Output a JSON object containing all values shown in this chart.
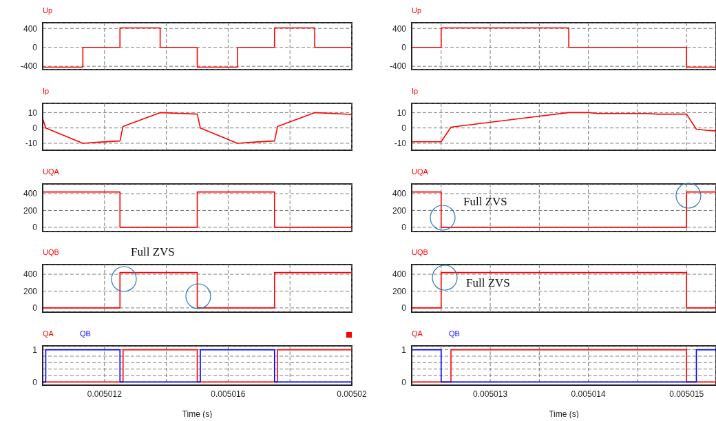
{
  "chart_data": [
    {
      "type": "step",
      "series": [
        {
          "name": "Up",
          "color": "#ff0000",
          "x": [
            0.00501,
            0.0050113,
            0.0050125,
            0.0050138,
            0.005015,
            0.0050163,
            0.0050175,
            0.0050188,
            0.00502
          ],
          "values": [
            -420,
            0,
            410,
            0,
            -420,
            0,
            410,
            0,
            0
          ]
        }
      ],
      "xlim": [
        0.00501,
        0.00502
      ],
      "xticks": [
        0.005012,
        {
          "value": 0.005014,
          "label": null
        },
        0.005016,
        {
          "value": 0.005018,
          "label": null
        },
        0.00502
      ],
      "ylim": [
        -470,
        520
      ],
      "yticks": [
        -400,
        0,
        400
      ],
      "grid": true,
      "tick_labels": "y",
      "legend": "top left"
    },
    {
      "type": "step",
      "series": [
        {
          "name": "Up",
          "color": "#ff0000",
          "x": [
            0.0050122,
            0.0050125,
            0.0050138,
            0.005015,
            0.0050153
          ],
          "values": [
            0,
            410,
            0,
            -420,
            -420
          ]
        }
      ],
      "xlim": [
        0.0050122,
        0.0050153
      ],
      "xticks": [
        {
          "value": 0.0050125,
          "label": null
        },
        0.005013,
        {
          "value": 0.0050135,
          "label": null
        },
        0.005014,
        {
          "value": 0.0050145,
          "label": null
        },
        0.005015
      ],
      "ylim": [
        -470,
        520
      ],
      "yticks": [
        -400,
        0,
        400
      ],
      "grid": true,
      "tick_labels": "y",
      "legend": "top left"
    },
    {
      "type": "line",
      "series": [
        {
          "name": "Ip",
          "color": "#ff0000",
          "x": [
            0.00501,
            0.0050101,
            0.0050113,
            0.0050118,
            0.0050125,
            0.0050126,
            0.0050138,
            0.005015,
            0.0050151,
            0.0050163,
            0.0050168,
            0.0050175,
            0.0050176,
            0.0050188,
            0.00502
          ],
          "values": [
            6,
            0,
            -10,
            -9.3,
            -8.5,
            1,
            10,
            9,
            0,
            -10,
            -9.3,
            -8.5,
            1,
            10,
            8.8
          ]
        }
      ],
      "xlim": [
        0.00501,
        0.00502
      ],
      "xticks": [
        0.005012,
        {
          "value": 0.005014,
          "label": null
        },
        0.005016,
        {
          "value": 0.005018,
          "label": null
        },
        0.00502
      ],
      "ylim": [
        -14.5,
        16
      ],
      "yticks": [
        -10,
        0,
        10
      ],
      "grid": true,
      "tick_labels": "y",
      "legend": "top left"
    },
    {
      "type": "line",
      "series": [
        {
          "name": "Ip",
          "color": "#ff0000",
          "x": [
            0.0050122,
            0.0050125,
            0.0050126,
            0.0050138,
            0.005014,
            0.0050141,
            0.0050146,
            0.0050147,
            0.005015,
            0.0050151,
            0.0050152,
            0.0050153
          ],
          "values": [
            -9,
            -9,
            0.5,
            10,
            10,
            9.4,
            9.4,
            9,
            9,
            -0.8,
            -1.5,
            -2
          ]
        }
      ],
      "xlim": [
        0.0050122,
        0.0050153
      ],
      "xticks": [
        {
          "value": 0.0050125,
          "label": null
        },
        0.005013,
        {
          "value": 0.0050135,
          "label": null
        },
        0.005014,
        {
          "value": 0.0050145,
          "label": null
        },
        0.005015
      ],
      "ylim": [
        -14.5,
        16
      ],
      "yticks": [
        -10,
        0,
        10
      ],
      "grid": true,
      "tick_labels": "y",
      "legend": "top left"
    },
    {
      "type": "step",
      "series": [
        {
          "name": "UQA",
          "color": "#ff0000",
          "x": [
            0.00501,
            0.0050125,
            0.005015,
            0.0050175,
            0.00502
          ],
          "values": [
            420,
            0,
            420,
            0,
            0
          ]
        }
      ],
      "xlim": [
        0.00501,
        0.00502
      ],
      "xticks": [
        0.005012,
        {
          "value": 0.005014,
          "label": null
        },
        0.005016,
        {
          "value": 0.005018,
          "label": null
        },
        0.00502
      ],
      "ylim": [
        -50,
        515
      ],
      "yticks": [
        0,
        200,
        400
      ],
      "grid": true,
      "tick_labels": "y",
      "legend": "top left"
    },
    {
      "type": "step",
      "series": [
        {
          "name": "UQA",
          "color": "#ff0000",
          "x": [
            0.0050122,
            0.0050125,
            0.005015,
            0.0050153
          ],
          "values": [
            420,
            0,
            420,
            420
          ]
        }
      ],
      "xlim": [
        0.0050122,
        0.0050153
      ],
      "xticks": [
        {
          "value": 0.0050125,
          "label": null
        },
        0.005013,
        {
          "value": 0.0050135,
          "label": null
        },
        0.005014,
        {
          "value": 0.0050145,
          "label": null
        },
        0.005015
      ],
      "ylim": [
        -50,
        515
      ],
      "yticks": [
        0,
        200,
        400
      ],
      "grid": true,
      "tick_labels": "y",
      "legend": "top left",
      "annotations": [
        "Full ZVS"
      ]
    },
    {
      "type": "step",
      "series": [
        {
          "name": "UQB",
          "color": "#ff0000",
          "x": [
            0.00501,
            0.0050125,
            0.005015,
            0.0050175,
            0.00502
          ],
          "values": [
            0,
            420,
            0,
            420,
            420
          ]
        }
      ],
      "xlim": [
        0.00501,
        0.00502
      ],
      "xticks": [
        0.005012,
        {
          "value": 0.005014,
          "label": null
        },
        0.005016,
        {
          "value": 0.005018,
          "label": null
        },
        0.00502
      ],
      "ylim": [
        -50,
        515
      ],
      "yticks": [
        0,
        200,
        400
      ],
      "grid": true,
      "tick_labels": "y",
      "legend": "top left",
      "annotations": [
        "Full ZVS"
      ]
    },
    {
      "type": "step",
      "series": [
        {
          "name": "UQB",
          "color": "#ff0000",
          "x": [
            0.0050122,
            0.0050125,
            0.005015,
            0.0050153
          ],
          "values": [
            0,
            420,
            0,
            0
          ]
        }
      ],
      "xlim": [
        0.0050122,
        0.0050153
      ],
      "xticks": [
        {
          "value": 0.0050125,
          "label": null
        },
        0.005013,
        {
          "value": 0.0050135,
          "label": null
        },
        0.005014,
        {
          "value": 0.0050145,
          "label": null
        },
        0.005015
      ],
      "ylim": [
        -50,
        515
      ],
      "yticks": [
        0,
        200,
        400
      ],
      "grid": true,
      "tick_labels": "y",
      "legend": "top left",
      "annotations": [
        "Full ZVS"
      ]
    },
    {
      "type": "step",
      "series": [
        {
          "name": "QA",
          "color": "#ff0000",
          "x": [
            0.00501,
            0.0050126,
            0.005015,
            0.0050176,
            0.00502
          ],
          "values": [
            0,
            1,
            0,
            1,
            1
          ]
        },
        {
          "name": "QB",
          "color": "#0000ff",
          "x": [
            0.00501,
            0.0050101,
            0.0050125,
            0.0050151,
            0.0050175,
            0.00502
          ],
          "values": [
            0,
            1,
            0,
            1,
            0,
            0
          ]
        }
      ],
      "xlim": [
        0.00501,
        0.00502
      ],
      "xticks": [
        0.005012,
        {
          "value": 0.005014,
          "label": null
        },
        0.005016,
        {
          "value": 0.005018,
          "label": null
        },
        0.00502
      ],
      "ylim": [
        -0.1,
        1.12
      ],
      "yticks": [
        0,
        {
          "value": 0.2,
          "label": null
        },
        {
          "value": 0.4,
          "label": null
        },
        {
          "value": 0.6,
          "label": null
        },
        {
          "value": 0.8,
          "label": null
        },
        1
      ],
      "grid": true,
      "xlabel": "Time (s)",
      "legend": "top left"
    },
    {
      "type": "step",
      "series": [
        {
          "name": "QA",
          "color": "#ff0000",
          "x": [
            0.0050122,
            0.0050126,
            0.005015,
            0.0050153
          ],
          "values": [
            0,
            1,
            0,
            0
          ]
        },
        {
          "name": "QB",
          "color": "#0000ff",
          "x": [
            0.0050122,
            0.0050125,
            0.0050151,
            0.0050153
          ],
          "values": [
            1,
            0,
            1,
            1
          ]
        }
      ],
      "xlim": [
        0.0050122,
        0.0050153
      ],
      "xticks": [
        {
          "value": 0.0050125,
          "label": null
        },
        0.005013,
        {
          "value": 0.0050135,
          "label": null
        },
        0.005014,
        {
          "value": 0.0050145,
          "label": null
        },
        0.005015
      ],
      "ylim": [
        -0.1,
        1.12
      ],
      "yticks": [
        0,
        {
          "value": 0.2,
          "label": null
        },
        {
          "value": 0.4,
          "label": null
        },
        {
          "value": 0.6,
          "label": null
        },
        {
          "value": 0.8,
          "label": null
        },
        1
      ],
      "grid": true,
      "xlabel": "Time (s)",
      "legend": "top left"
    }
  ]
}
